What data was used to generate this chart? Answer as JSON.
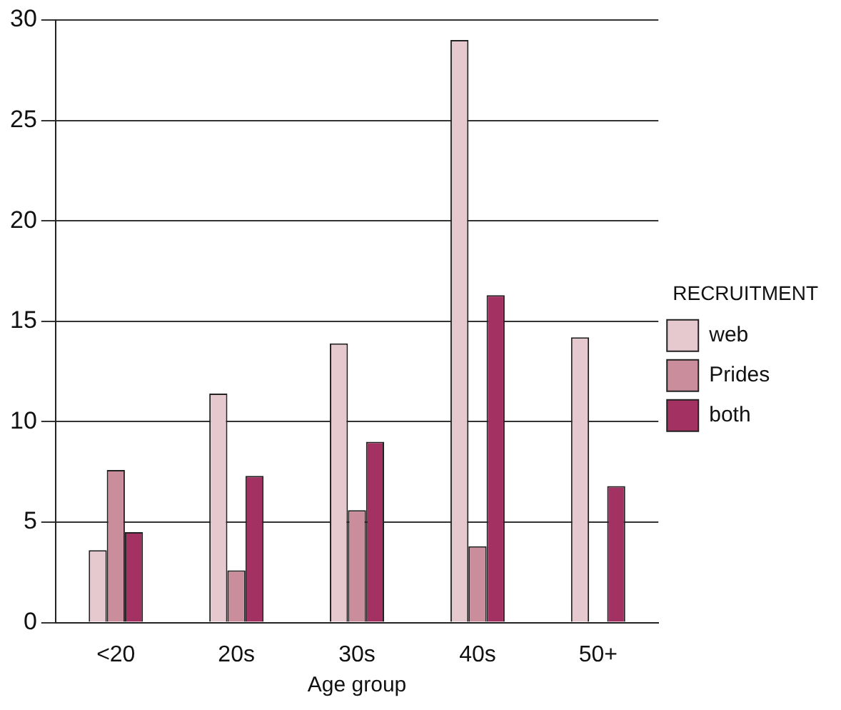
{
  "chart_data": {
    "type": "bar",
    "xlabel": "Age group",
    "legend_title": "RECRUITMENT",
    "legend": "right",
    "grid": "y",
    "categories": [
      "<20",
      "20s",
      "30s",
      "40s",
      "50+"
    ],
    "series": [
      {
        "name": "web",
        "color": "#e6c8cf",
        "values": [
          3.6,
          11.4,
          13.9,
          29.0,
          14.2
        ]
      },
      {
        "name": "Prides",
        "color": "#c98d9c",
        "values": [
          7.6,
          2.6,
          5.6,
          3.8,
          null
        ]
      },
      {
        "name": "both",
        "color": "#a33262",
        "values": [
          4.5,
          7.3,
          9.0,
          16.3,
          6.8
        ]
      }
    ],
    "ylim": [
      0,
      30
    ],
    "yticks": [
      0,
      5,
      10,
      15,
      20,
      25,
      30
    ]
  }
}
